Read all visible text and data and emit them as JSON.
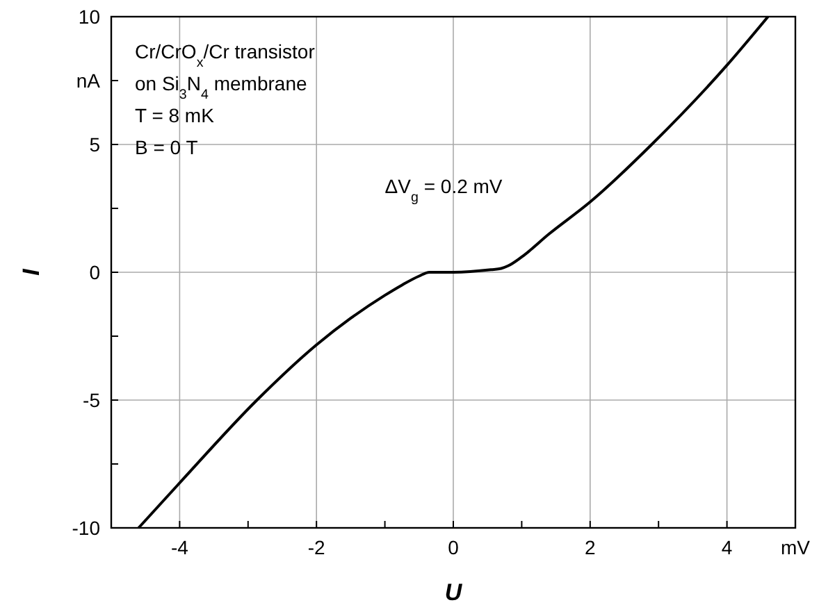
{
  "chart_data": {
    "type": "line",
    "xlabel": "U",
    "ylabel": "I",
    "xlim": [
      -5,
      5
    ],
    "ylim": [
      -10,
      10
    ],
    "xticks": [
      {
        "value": -5,
        "label": null
      },
      -4,
      {
        "value": -3,
        "label": null
      },
      -2,
      {
        "value": -1,
        "label": null
      },
      0,
      {
        "value": 1,
        "label": null
      },
      2,
      {
        "value": 3,
        "label": null
      },
      4,
      {
        "value": 5,
        "label": "mV"
      }
    ],
    "yticks": [
      -10,
      {
        "value": -7.5,
        "label": null
      },
      -5,
      {
        "value": -2.5,
        "label": null
      },
      0,
      {
        "value": 2.5,
        "label": null
      },
      5,
      {
        "value": 7.5,
        "label": "nA"
      },
      10
    ],
    "grid": true,
    "line_style": "solid",
    "x": [
      -4.6,
      -4,
      -2.87,
      -2,
      -1.5,
      -1,
      -0.75,
      -0.5,
      -0.35,
      0,
      0.55,
      0.7,
      0.8,
      1,
      1.4,
      2,
      2.9,
      4,
      4.6
    ],
    "series": [
      {
        "color": "#000000",
        "values": [
          -10,
          -8.24,
          -5,
          -2.84,
          -1.8,
          -0.9,
          -0.5,
          -0.15,
          0,
          0,
          0.1,
          0.15,
          0.25,
          0.6,
          1.5,
          2.75,
          5,
          8.1,
          10
        ]
      }
    ],
    "annotations": [
      "Cr/CrO$_{x}$/Cr transistor",
      "on Si$_{3}$N$_{4}$ membrane",
      "T = 8 mK",
      "B = 0 T",
      "ΔV$_{g}$ = 0.2 mV"
    ]
  }
}
